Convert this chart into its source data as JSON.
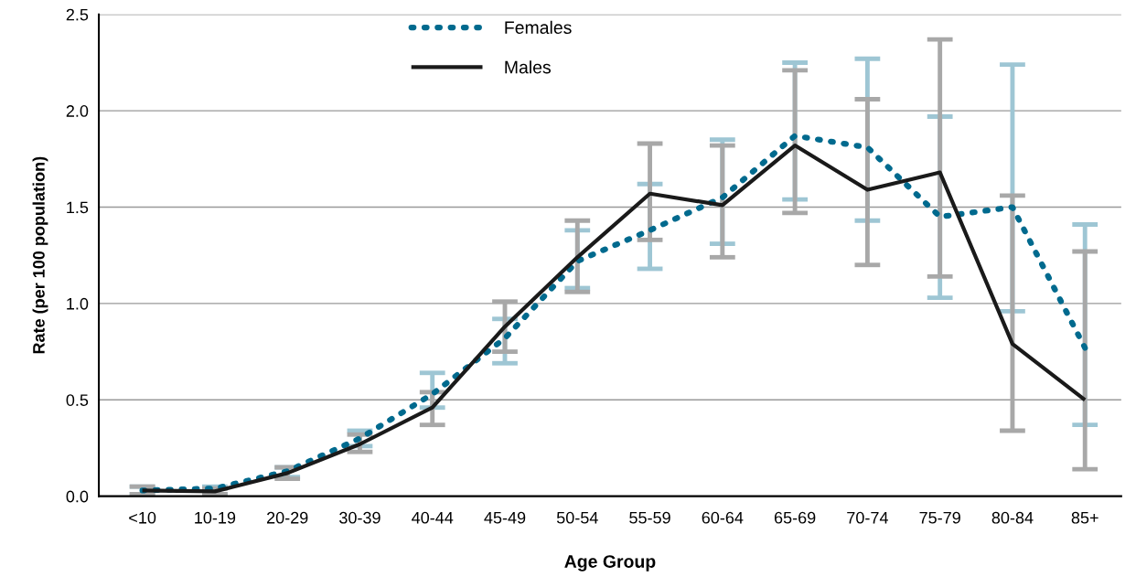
{
  "chart_data": {
    "type": "line",
    "xlabel": "Age Group",
    "ylabel": "Rate (per 100 population)",
    "categories": [
      "<10",
      "10-19",
      "20-29",
      "30-39",
      "40-44",
      "45-49",
      "50-54",
      "55-59",
      "60-64",
      "65-69",
      "70-74",
      "75-79",
      "80-84",
      "85+"
    ],
    "series": [
      {
        "name": "Females",
        "color": "#006a8e",
        "line_style": "dotted",
        "values": [
          0.03,
          0.04,
          0.13,
          0.3,
          0.53,
          0.82,
          1.22,
          1.38,
          1.55,
          1.87,
          1.81,
          1.45,
          1.5,
          0.77
        ],
        "errors": [
          [
            0.01,
            0.05
          ],
          [
            0.01,
            0.05
          ],
          [
            0.1,
            0.15
          ],
          [
            0.26,
            0.34
          ],
          [
            0.46,
            0.64
          ],
          [
            0.69,
            0.92
          ],
          [
            1.08,
            1.38
          ],
          [
            1.18,
            1.62
          ],
          [
            1.31,
            1.85
          ],
          [
            1.54,
            2.25
          ],
          [
            1.43,
            2.27
          ],
          [
            1.03,
            1.97
          ],
          [
            0.96,
            2.24
          ],
          [
            0.37,
            1.41
          ]
        ]
      },
      {
        "name": "Males",
        "color": "#1a1a1a",
        "line_style": "solid",
        "values": [
          0.03,
          0.025,
          0.12,
          0.27,
          0.46,
          0.88,
          1.24,
          1.57,
          1.51,
          1.82,
          1.59,
          1.68,
          0.79,
          0.5
        ],
        "errors": [
          [
            0.01,
            0.05
          ],
          [
            0.01,
            0.04
          ],
          [
            0.09,
            0.15
          ],
          [
            0.23,
            0.32
          ],
          [
            0.37,
            0.54
          ],
          [
            0.75,
            1.01
          ],
          [
            1.06,
            1.43
          ],
          [
            1.33,
            1.83
          ],
          [
            1.24,
            1.82
          ],
          [
            1.47,
            2.21
          ],
          [
            1.2,
            2.06
          ],
          [
            1.14,
            2.37
          ],
          [
            0.34,
            1.56
          ],
          [
            0.14,
            1.27
          ]
        ]
      }
    ],
    "ylim": [
      0,
      2.5
    ],
    "yticks": [
      {
        "value": 0,
        "label": "0.0"
      },
      {
        "value": 0.5,
        "label": "0.5"
      },
      {
        "value": 1,
        "label": "1.0"
      },
      {
        "value": 1.5,
        "label": "1.5"
      },
      {
        "value": 2,
        "label": "2.0"
      },
      {
        "value": 2.5,
        "label": "2.5"
      }
    ],
    "grid": "y",
    "legend": "top left",
    "marker": "none"
  }
}
